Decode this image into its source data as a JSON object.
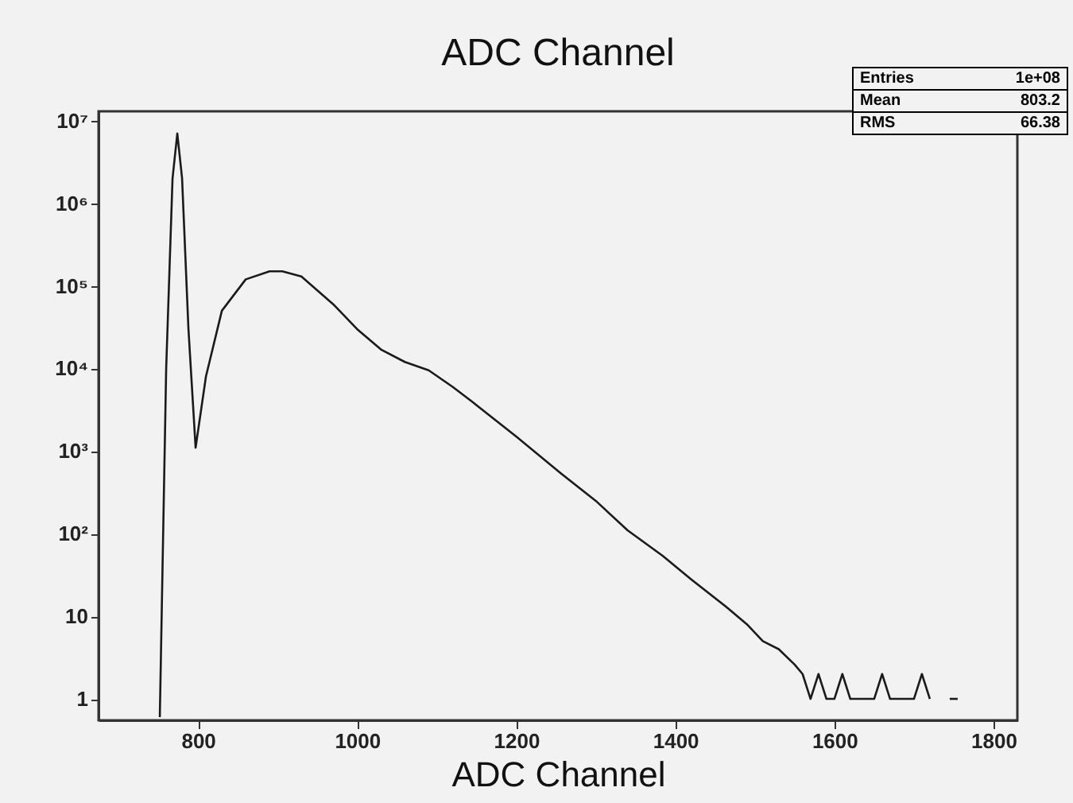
{
  "chart_data": {
    "type": "line",
    "title": "ADC Channel",
    "xlabel": "ADC Channel",
    "annotations": [
      "Entries 1e+08",
      "Mean 803.2",
      "RMS 66.38"
    ],
    "x": [
      752,
      760,
      768,
      774,
      780,
      788,
      797,
      810,
      830,
      860,
      890,
      906,
      930,
      970,
      1000,
      1030,
      1060,
      1090,
      1120,
      1144,
      1200,
      1256,
      1300,
      1340,
      1384,
      1420,
      1464,
      1490,
      1510,
      1530,
      1550,
      1560,
      1570,
      1580,
      1590,
      1600,
      1610,
      1620,
      1630,
      1640,
      1650,
      1660,
      1670,
      1680,
      1690,
      1700,
      1710,
      1720
    ],
    "series": [
      {
        "color": "#1a1a1a",
        "values": [
          0.6,
          10000,
          2000000,
          7000000,
          2000000,
          30000,
          1100,
          8000,
          50000,
          120000,
          150000,
          150000,
          130000,
          60000,
          30000,
          17000,
          12000,
          9500,
          6000,
          4000,
          1500,
          540,
          250,
          110,
          54,
          28,
          13,
          8,
          5,
          4,
          2.6,
          2,
          1,
          2,
          1,
          1,
          2,
          1,
          1,
          1,
          1,
          2,
          1,
          1,
          1,
          1,
          2,
          1
        ]
      },
      {
        "color": "#1a1a1a",
        "x": [
          1745,
          1755
        ],
        "values": [
          1,
          1
        ]
      }
    ],
    "xlim": [
      675,
      1830
    ],
    "ylim": [
      0.55,
      13000000
    ],
    "log": "y",
    "xticks": [
      800,
      1000,
      1200,
      1400,
      1600,
      1800
    ],
    "yticks": [
      1,
      10,
      {
        "value": 100,
        "label": "10²"
      },
      {
        "value": 1000,
        "label": "10³"
      },
      {
        "value": 10000,
        "label": "10⁴"
      },
      {
        "value": 100000,
        "label": "10⁵"
      },
      {
        "value": 1000000,
        "label": "10⁶"
      },
      {
        "value": 10000000,
        "label": "10⁷"
      }
    ],
    "grid": false,
    "line_style": "solid",
    "marker": "none"
  }
}
